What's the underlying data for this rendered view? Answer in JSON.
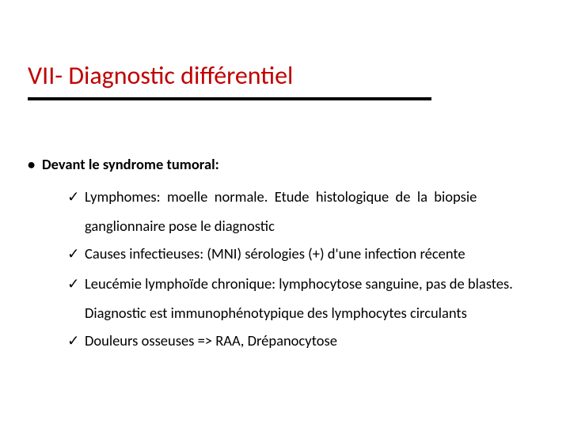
{
  "colors": {
    "title": "#c00000",
    "underline": "#000000",
    "text": "#000000",
    "background": "#ffffff"
  },
  "glyphs": {
    "bullet": "•",
    "check": "✓"
  },
  "title": "VII- Diagnostic différentiel",
  "heading": "Devant le syndrome tumoral:",
  "items": {
    "0": {
      "line1": "Lymphomes:   moelle   normale.   Etude   histologique   de   la   biopsie",
      "line2": "ganglionnaire pose le diagnostic"
    },
    "1": {
      "line1": "Causes infectieuses: (MNI) sérologies (+) d'une infection récente"
    },
    "2": {
      "line1": "Leucémie lymphoïde chronique: lymphocytose sanguine, pas de blastes.",
      "line2": "Diagnostic est immunophénotypique des lymphocytes circulants"
    },
    "3": {
      "line1": "Douleurs osseuses => RAA, Drépanocytose"
    }
  }
}
